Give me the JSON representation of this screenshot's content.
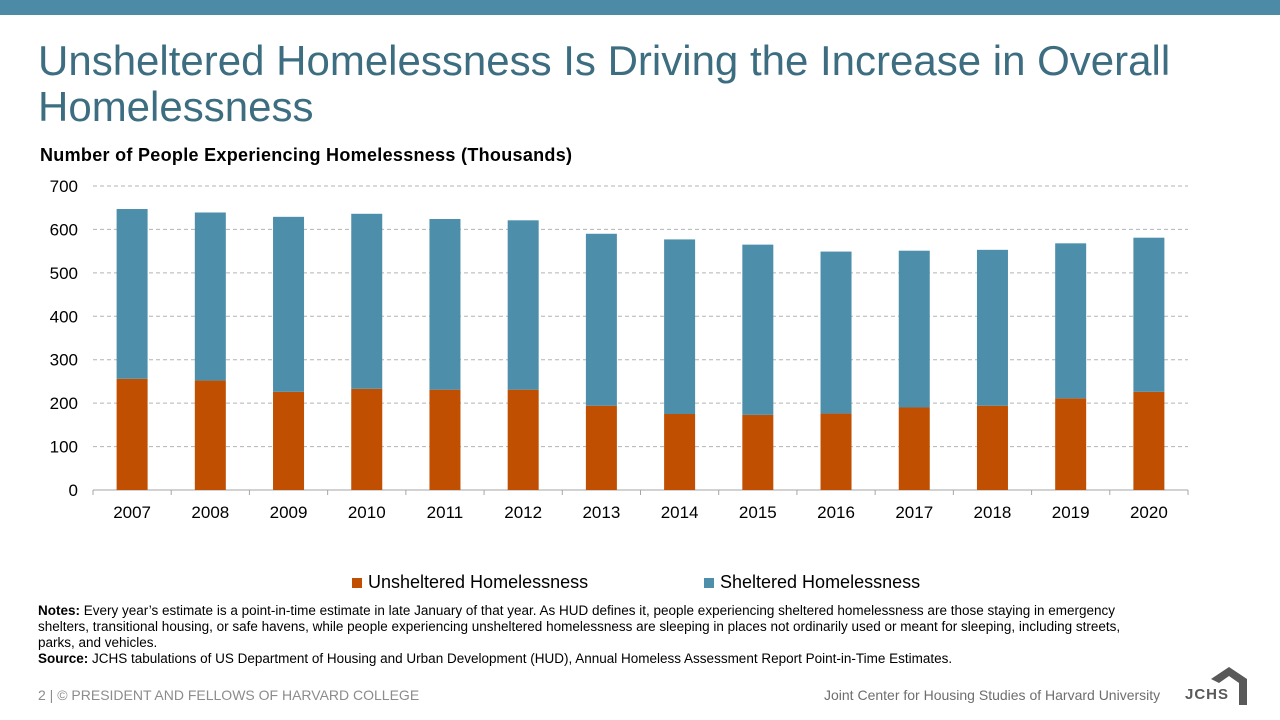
{
  "header": {
    "title": "Unsheltered Homelessness Is Driving the Increase in Overall Homelessness"
  },
  "colors": {
    "accent_bar": "#4d8aa6",
    "title": "#3d6d80",
    "unsheltered": "#c04f02",
    "sheltered": "#4d8fab"
  },
  "chart_data": {
    "type": "bar",
    "stacked": true,
    "title": "Number of People Experiencing Homelessness (Thousands)",
    "xlabel": "",
    "ylabel": "",
    "categories": [
      "2007",
      "2008",
      "2009",
      "2010",
      "2011",
      "2012",
      "2013",
      "2014",
      "2015",
      "2016",
      "2017",
      "2018",
      "2019",
      "2020"
    ],
    "series": [
      {
        "name": "Unsheltered Homelessness",
        "color": "#c04f02",
        "values": [
          256,
          252,
          226,
          233,
          231,
          231,
          194,
          175,
          173,
          176,
          190,
          194,
          211,
          226
        ]
      },
      {
        "name": "Sheltered Homelessness",
        "color": "#4d8fab",
        "values": [
          391,
          387,
          403,
          403,
          393,
          390,
          396,
          402,
          392,
          373,
          361,
          359,
          357,
          355
        ]
      }
    ],
    "ylim": [
      0,
      700
    ],
    "yticks": [
      "0",
      "100",
      "200",
      "300",
      "400",
      "500",
      "600",
      "700"
    ],
    "grid": true,
    "legend_position": "bottom"
  },
  "notes": {
    "notes_label": "Notes:",
    "notes_text": " Every year’s estimate is a point-in-time estimate in late January of that year. As HUD defines it, people experiencing sheltered homelessness are those staying in emergency shelters, transitional housing, or safe havens, while people experiencing unsheltered homelessness are sleeping in places not ordinarily used or meant for sleeping, including streets, parks, and vehicles.",
    "source_label": "Source:",
    "source_text": " JCHS tabulations of US Department of Housing and Urban Development (HUD), Annual Homeless Assessment Report Point-in-Time Estimates."
  },
  "footer": {
    "left": "2 | © PRESIDENT AND FELLOWS OF HARVARD COLLEGE",
    "right": "Joint Center for Housing Studies of Harvard University",
    "logo_text": "JCHS",
    "logo_icon": "house-icon"
  }
}
